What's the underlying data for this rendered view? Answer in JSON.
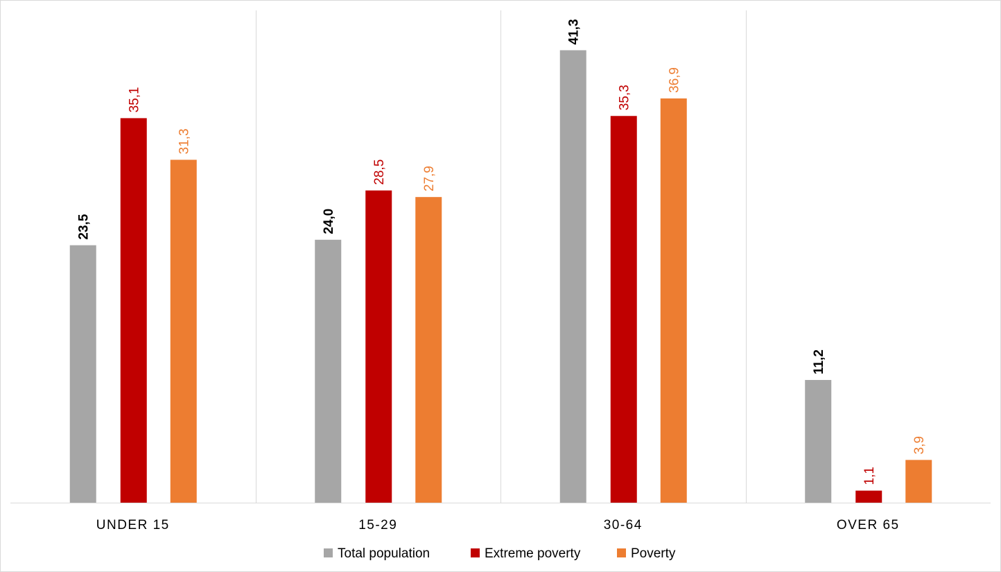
{
  "chart_data": {
    "type": "bar",
    "categories": [
      "UNDER 15",
      "15-29",
      "30-64",
      "OVER 65"
    ],
    "series": [
      {
        "name": "Total population",
        "color": "#a6a6a6",
        "label_color": "#000000",
        "label_bold": true,
        "values": [
          23.5,
          24.0,
          41.3,
          11.2
        ],
        "labels": [
          "23,5",
          "24,0",
          "41,3",
          "11,2"
        ]
      },
      {
        "name": "Extreme poverty",
        "color": "#c00000",
        "label_color": "#c00000",
        "label_bold": false,
        "values": [
          35.1,
          28.5,
          35.3,
          1.1
        ],
        "labels": [
          "35,1",
          "28,5",
          "35,3",
          "1,1"
        ]
      },
      {
        "name": "Poverty",
        "color": "#ed7d31",
        "label_color": "#ed7d31",
        "label_bold": false,
        "values": [
          31.3,
          27.9,
          36.9,
          3.9
        ],
        "labels": [
          "31,3",
          "27,9",
          "36,9",
          "3,9"
        ]
      }
    ],
    "ylim": [
      0,
      45
    ],
    "grid": false,
    "legend_position": "bottom",
    "value_label_orientation": "vertical"
  }
}
